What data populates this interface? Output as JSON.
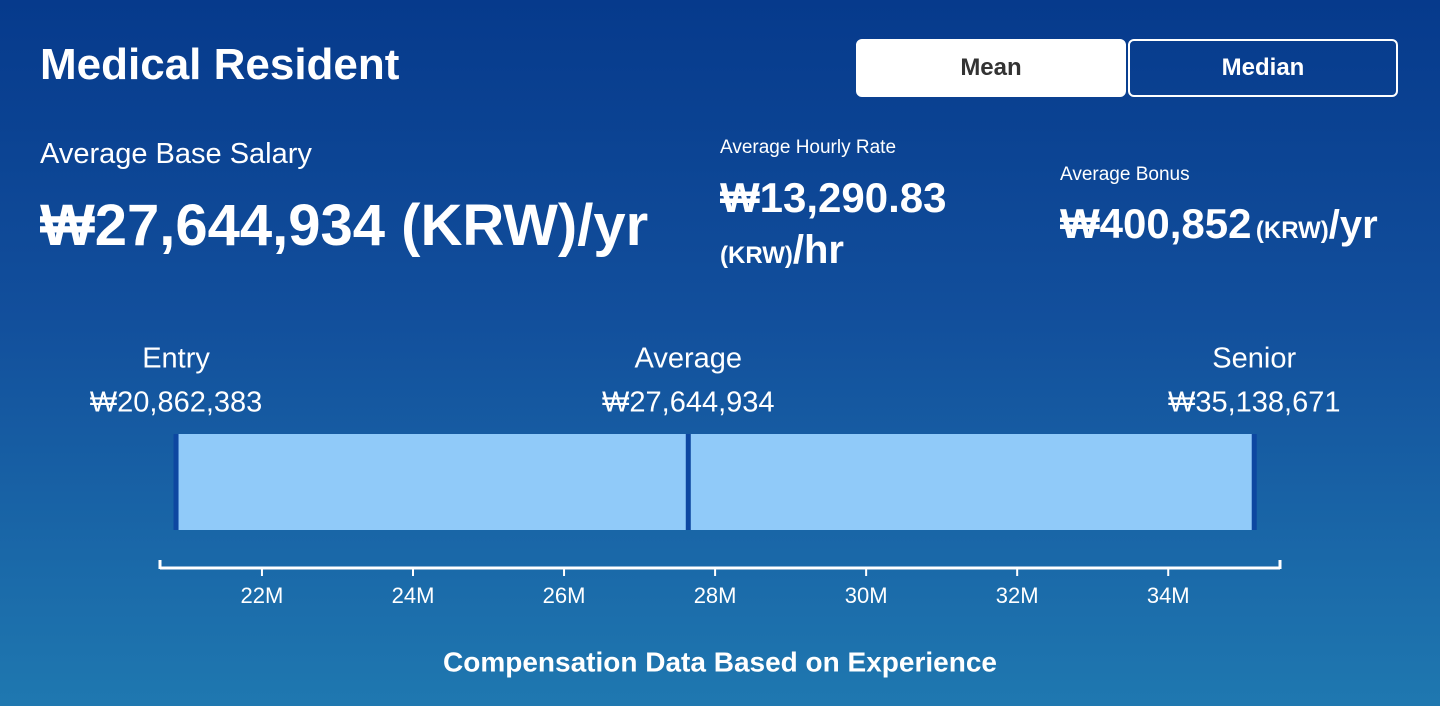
{
  "header": {
    "title": "Medical Resident",
    "toggles": [
      "Mean",
      "Median"
    ]
  },
  "stats": {
    "base": {
      "label": "Average Base Salary",
      "value": "₩27,644,934 (KRW)/yr"
    },
    "hourly": {
      "label": "Average Hourly Rate",
      "value": "₩13,290.83",
      "currency": "(KRW)",
      "period": "/hr"
    },
    "bonus": {
      "label": "Average Bonus",
      "value": "₩400,852",
      "currency": "(KRW)",
      "period": "/yr"
    }
  },
  "range": {
    "categories": [
      "Entry",
      "Average",
      "Senior"
    ],
    "values": [
      20862383,
      27644934,
      35138671
    ],
    "value_labels": [
      "₩20,862,383",
      "₩27,644,934",
      "₩35,138,671"
    ],
    "xlim": [
      20650000,
      35480000
    ],
    "xticks": [
      {
        "value": 22000000,
        "label": "22M"
      },
      {
        "value": 24000000,
        "label": "24M"
      },
      {
        "value": 26000000,
        "label": "26M"
      },
      {
        "value": 28000000,
        "label": "28M"
      },
      {
        "value": 30000000,
        "label": "30M"
      },
      {
        "value": 32000000,
        "label": "32M"
      },
      {
        "value": 34000000,
        "label": "34M"
      }
    ],
    "bar_color": "#90caf9",
    "marker_color": "#0d47a1",
    "footer": "Compensation Data Based on Experience"
  }
}
